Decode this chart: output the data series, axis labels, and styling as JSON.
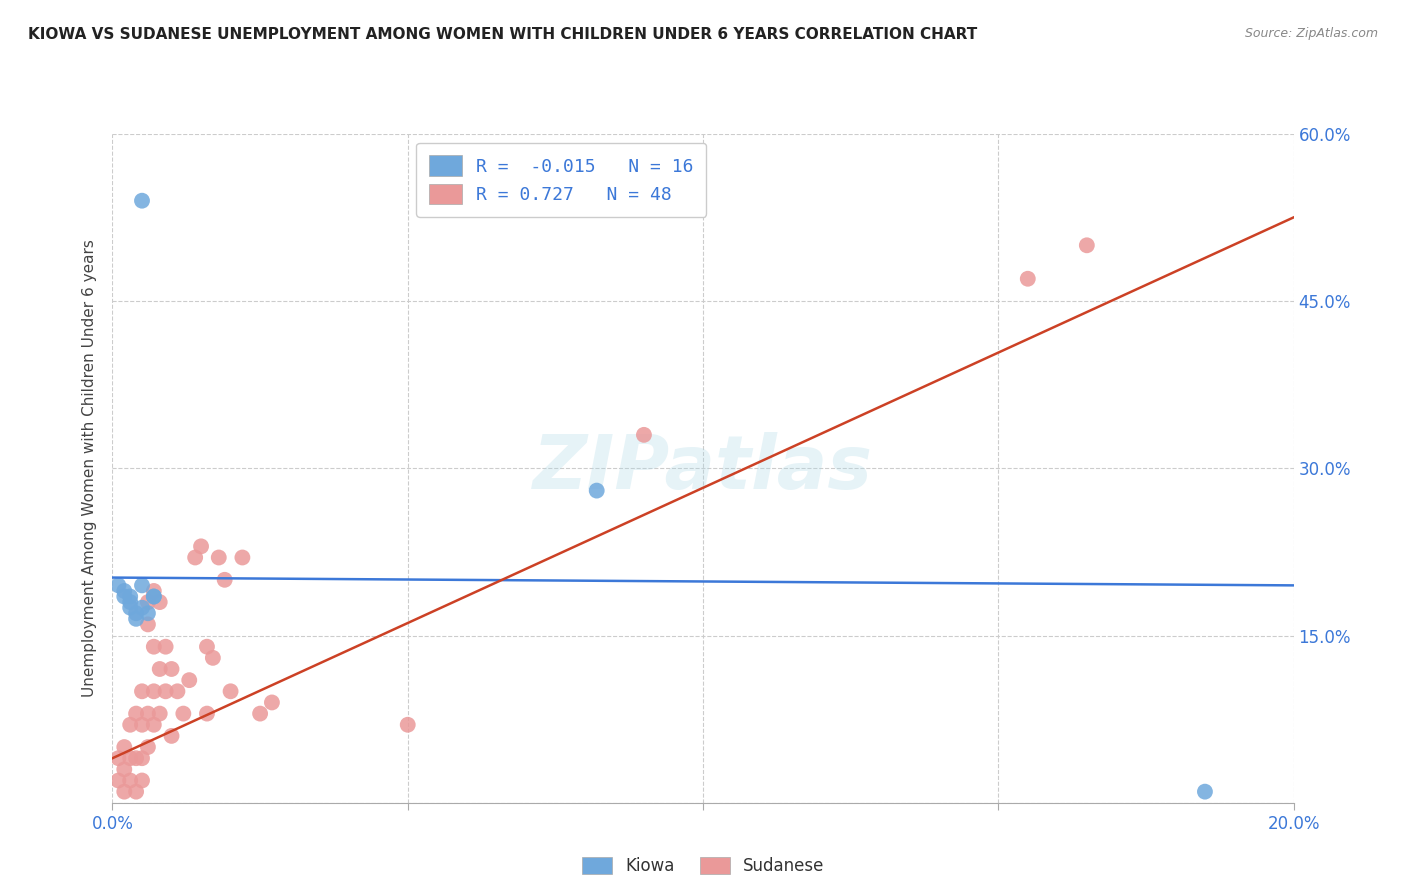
{
  "title": "KIOWA VS SUDANESE UNEMPLOYMENT AMONG WOMEN WITH CHILDREN UNDER 6 YEARS CORRELATION CHART",
  "source": "Source: ZipAtlas.com",
  "ylabel": "Unemployment Among Women with Children Under 6 years",
  "xlim": [
    0.0,
    0.2
  ],
  "ylim": [
    0.0,
    0.6
  ],
  "xticks": [
    0.0,
    0.05,
    0.1,
    0.15,
    0.2
  ],
  "xtick_labels": [
    "0.0%",
    "",
    "",
    "",
    "20.0%"
  ],
  "yticks": [
    0.0,
    0.15,
    0.3,
    0.45,
    0.6
  ],
  "right_ytick_labels": [
    "",
    "15.0%",
    "30.0%",
    "45.0%",
    "60.0%"
  ],
  "kiowa_color": "#6fa8dc",
  "sudanese_color": "#ea9999",
  "kiowa_line_color": "#3c78d8",
  "sudanese_line_color": "#cc4125",
  "kiowa_R": -0.015,
  "kiowa_N": 16,
  "sudanese_R": 0.727,
  "sudanese_N": 48,
  "watermark": "ZIPatlas",
  "background_color": "#ffffff",
  "grid_color": "#cccccc",
  "kiowa_x": [
    0.001,
    0.002,
    0.002,
    0.003,
    0.003,
    0.003,
    0.004,
    0.004,
    0.005,
    0.005,
    0.006,
    0.007,
    0.007,
    0.082,
    0.185,
    0.005
  ],
  "kiowa_y": [
    0.195,
    0.19,
    0.185,
    0.185,
    0.18,
    0.175,
    0.17,
    0.165,
    0.195,
    0.175,
    0.17,
    0.185,
    0.185,
    0.28,
    0.01,
    0.54
  ],
  "sudanese_x": [
    0.001,
    0.001,
    0.002,
    0.002,
    0.002,
    0.003,
    0.003,
    0.003,
    0.004,
    0.004,
    0.004,
    0.005,
    0.005,
    0.005,
    0.005,
    0.006,
    0.006,
    0.006,
    0.006,
    0.007,
    0.007,
    0.007,
    0.007,
    0.008,
    0.008,
    0.008,
    0.009,
    0.009,
    0.01,
    0.01,
    0.011,
    0.012,
    0.013,
    0.014,
    0.015,
    0.016,
    0.016,
    0.017,
    0.018,
    0.019,
    0.02,
    0.022,
    0.025,
    0.027,
    0.05,
    0.09,
    0.155,
    0.165
  ],
  "sudanese_y": [
    0.04,
    0.02,
    0.05,
    0.03,
    0.01,
    0.07,
    0.04,
    0.02,
    0.08,
    0.04,
    0.01,
    0.1,
    0.07,
    0.04,
    0.02,
    0.18,
    0.16,
    0.08,
    0.05,
    0.19,
    0.14,
    0.1,
    0.07,
    0.18,
    0.12,
    0.08,
    0.14,
    0.1,
    0.12,
    0.06,
    0.1,
    0.08,
    0.11,
    0.22,
    0.23,
    0.14,
    0.08,
    0.13,
    0.22,
    0.2,
    0.1,
    0.22,
    0.08,
    0.09,
    0.07,
    0.33,
    0.47,
    0.5
  ],
  "kiowa_trendline_x": [
    0.0,
    0.2
  ],
  "kiowa_trendline_y": [
    0.202,
    0.195
  ],
  "sudanese_trendline_x": [
    0.0,
    0.2
  ],
  "sudanese_trendline_y": [
    0.04,
    0.525
  ]
}
